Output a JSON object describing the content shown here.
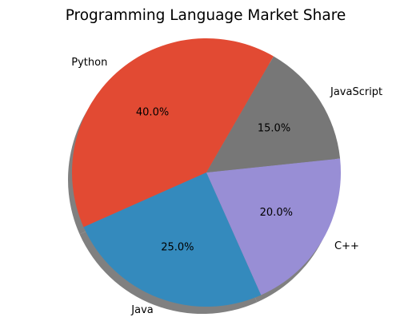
{
  "chart_data": {
    "type": "pie",
    "title": "Programming Language Market Share",
    "slices": [
      {
        "label": "Python",
        "value": 40.0,
        "percent_label": "40.0%",
        "color": "#e24a33"
      },
      {
        "label": "Java",
        "value": 25.0,
        "percent_label": "25.0%",
        "color": "#348abd"
      },
      {
        "label": "C++",
        "value": 20.0,
        "percent_label": "20.0%",
        "color": "#988ed5"
      },
      {
        "label": "JavaScript",
        "value": 15.0,
        "percent_label": "15.0%",
        "color": "#777777"
      }
    ],
    "start_angle_deg": 60,
    "direction": "counterclockwise",
    "shadow": true,
    "shadow_color": "#808080"
  }
}
